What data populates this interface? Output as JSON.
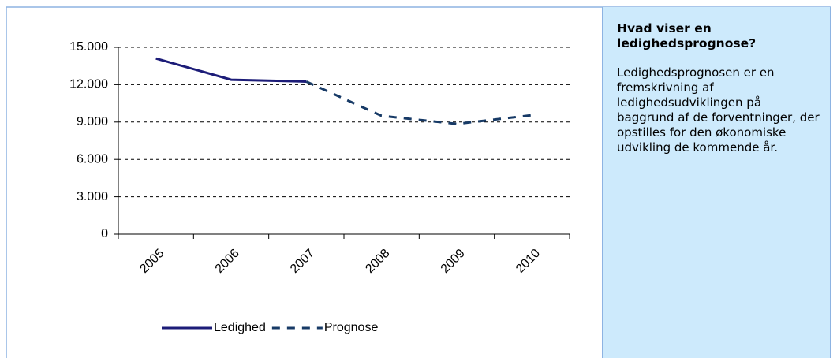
{
  "chart_data": {
    "type": "line",
    "categories": [
      "2005",
      "2006",
      "2007",
      "2008",
      "2009",
      "2010"
    ],
    "series": [
      {
        "name": "Ledighed",
        "color": "#1c1c78",
        "style": "solid",
        "values": [
          14100,
          12400,
          12250,
          null,
          null,
          null
        ]
      },
      {
        "name": "Prognose",
        "color": "#173a66",
        "style": "dashed",
        "values": [
          null,
          null,
          12250,
          9500,
          8850,
          9550
        ]
      }
    ],
    "ylim": [
      0,
      15000
    ],
    "yticks": [
      0,
      {
        "value": 3000,
        "label": "3.000"
      },
      {
        "value": 6000,
        "label": "6.000"
      },
      {
        "value": 9000,
        "label": "9.000"
      },
      {
        "value": 12000,
        "label": "12.000"
      },
      {
        "value": 15000,
        "label": "15.000"
      }
    ],
    "grid": true,
    "legend": "bottom"
  },
  "panel": {
    "title": "Hvad viser en ledighedsprognose?",
    "body": "Ledighedsprognosen er en fremskrivning af ledighedsudviklingen på baggrund af de forventninger, der opstilles for den økonomiske udvikling de kommende år."
  }
}
